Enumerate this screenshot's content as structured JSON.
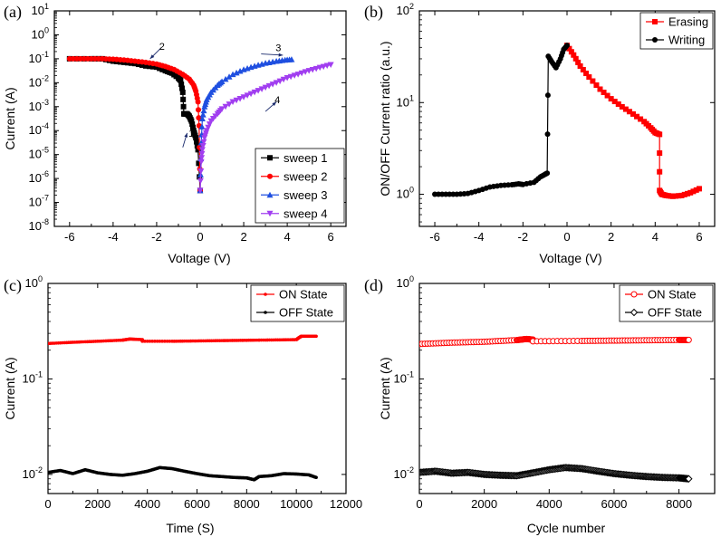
{
  "colors": {
    "black": "#000000",
    "red": "#ff0000",
    "blue": "#1f4fe0",
    "purple": "#a13ef0"
  },
  "chart_data": [
    {
      "id": "a",
      "type": "line",
      "panel_label": "(a)",
      "xlabel": "Voltage (V)",
      "ylabel": "Current (A)",
      "xlim": [
        -6.7,
        6.7
      ],
      "xscale": "linear",
      "yscale": "log",
      "ylim_exp": [
        -8,
        1
      ],
      "x_ticks": [
        -6,
        -4,
        -2,
        0,
        2,
        4,
        6
      ],
      "x_tick_labels": [
        "-6",
        "-4",
        "-2",
        "0",
        "2",
        "4",
        "6"
      ],
      "y_tick_exps": [
        -8,
        -7,
        -6,
        -5,
        -4,
        -3,
        -2,
        -1,
        0,
        1
      ],
      "y_tick_base": "10",
      "y_tick_sups": [
        "-8",
        "-7",
        "-6",
        "-5",
        "-4",
        "-3",
        "-2",
        "-1",
        "0",
        "1"
      ],
      "legend_position": "bottom-right",
      "series": [
        {
          "name": "sweep 1",
          "color_key": "black",
          "marker": "square",
          "x": [
            -6,
            -5,
            -4.5,
            -4,
            -3.5,
            -3,
            -2.5,
            -2,
            -1.6,
            -1.3,
            -1.0,
            -0.9,
            -0.8,
            -0.75,
            -0.7,
            -0.6,
            -0.5,
            -0.4,
            -0.3,
            -0.2,
            -0.1,
            0
          ],
          "y_exp": [
            -1,
            -1,
            -1,
            -1.1,
            -1.15,
            -1.2,
            -1.3,
            -1.35,
            -1.5,
            -1.6,
            -1.8,
            -1.9,
            -2.4,
            -3.3,
            -3.3,
            -3.3,
            -3.4,
            -3.6,
            -4.0,
            -4.3,
            -4.8,
            -6.5
          ]
        },
        {
          "name": "sweep 2",
          "color_key": "red",
          "marker": "circle",
          "x": [
            0,
            -0.05,
            -0.1,
            -0.2,
            -0.3,
            -0.5,
            -0.8,
            -1.2,
            -1.6,
            -2,
            -2.5,
            -3,
            -3.5,
            -4,
            -4.5,
            -5,
            -5.5,
            -6
          ],
          "y_exp": [
            -6.5,
            -3.8,
            -2.8,
            -2.35,
            -2.1,
            -1.85,
            -1.65,
            -1.45,
            -1.32,
            -1.22,
            -1.15,
            -1.1,
            -1.05,
            -1.02,
            -1.0,
            -1.0,
            -1.0,
            -1.0
          ]
        },
        {
          "name": "sweep 3",
          "color_key": "blue",
          "marker": "triangle-up",
          "x": [
            0,
            0.05,
            0.1,
            0.2,
            0.3,
            0.5,
            0.8,
            1.0,
            1.5,
            2,
            2.5,
            3,
            3.5,
            3.9,
            4.2
          ],
          "y_exp": [
            -6.5,
            -4.5,
            -3.5,
            -3.0,
            -2.7,
            -2.4,
            -2.1,
            -1.95,
            -1.65,
            -1.45,
            -1.3,
            -1.18,
            -1.1,
            -1.05,
            -1.03
          ]
        },
        {
          "name": "sweep 4",
          "color_key": "purple",
          "marker": "triangle-down",
          "x": [
            0,
            0.05,
            0.1,
            0.2,
            0.3,
            0.5,
            0.8,
            1.0,
            1.5,
            2,
            2.5,
            3,
            3.5,
            4,
            4.5,
            5,
            5.5,
            6
          ],
          "y_exp": [
            -6.5,
            -5.3,
            -4.8,
            -4.3,
            -4.0,
            -3.6,
            -3.3,
            -3.1,
            -2.8,
            -2.6,
            -2.4,
            -2.2,
            -2.0,
            -1.8,
            -1.65,
            -1.5,
            -1.37,
            -1.25
          ]
        }
      ],
      "annotations": [
        {
          "text": "1",
          "x": -0.8,
          "y_exp": -4.7,
          "x2": -0.6,
          "y2_exp": -4.1
        },
        {
          "text": "2",
          "x": -1.8,
          "y_exp": -0.55,
          "x2": -2.3,
          "y2_exp": -1.0
        },
        {
          "text": "3",
          "x": 2.8,
          "y_exp": -0.8,
          "x2": 3.8,
          "y2_exp": -0.85
        },
        {
          "text": "4",
          "x": 3.0,
          "y_exp": -3.2,
          "x2": 3.5,
          "y2_exp": -2.8
        }
      ]
    },
    {
      "id": "b",
      "type": "line",
      "panel_label": "(b)",
      "xlabel": "Voltage (V)",
      "ylabel": "ON/OFF Current ratio (a.u.)",
      "xlim": [
        -6.7,
        6.7
      ],
      "xscale": "linear",
      "yscale": "log",
      "ylim_exp": [
        -0.35,
        2
      ],
      "x_ticks": [
        -6,
        -4,
        -2,
        0,
        2,
        4,
        6
      ],
      "x_tick_labels": [
        "-6",
        "-4",
        "-2",
        "0",
        "2",
        "4",
        "6"
      ],
      "y_tick_exps": [
        0,
        1,
        2
      ],
      "y_tick_base": "10",
      "y_tick_sups": [
        "0",
        "1",
        "2"
      ],
      "legend_position": "top-right",
      "series": [
        {
          "name": "Erasing",
          "color_key": "red",
          "marker": "square",
          "x": [
            0,
            0.3,
            0.6,
            1.0,
            1.5,
            2.0,
            2.5,
            3.0,
            3.5,
            3.8,
            4.0,
            4.2,
            4.2,
            4.3,
            4.5,
            4.8,
            5.2,
            5.6,
            6.0
          ],
          "y": [
            42,
            33,
            25,
            19,
            14,
            11,
            9,
            7.5,
            6.2,
            5.3,
            4.7,
            4.5,
            1.1,
            1.0,
            0.97,
            0.95,
            0.97,
            1.04,
            1.15
          ]
        },
        {
          "name": "Writing",
          "color_key": "black",
          "marker": "circle",
          "x": [
            -6,
            -5.5,
            -5,
            -4.5,
            -4,
            -3.5,
            -3,
            -2.5,
            -2.2,
            -2,
            -1.5,
            -1.2,
            -1.0,
            -0.9,
            -0.85,
            -0.7,
            -0.5,
            -0.3,
            -0.15,
            0
          ],
          "y": [
            1.0,
            1.0,
            1.0,
            1.02,
            1.1,
            1.2,
            1.25,
            1.27,
            1.3,
            1.28,
            1.35,
            1.55,
            1.65,
            1.7,
            32,
            28,
            24,
            30,
            38,
            42
          ]
        }
      ]
    },
    {
      "id": "c",
      "type": "line",
      "panel_label": "(c)",
      "xlabel": "Time (S)",
      "ylabel": "Current (A)",
      "xlim": [
        0,
        12000
      ],
      "xscale": "linear",
      "yscale": "log",
      "ylim_exp": [
        -2.2,
        0
      ],
      "x_ticks": [
        0,
        2000,
        4000,
        6000,
        8000,
        10000,
        12000
      ],
      "x_tick_labels": [
        "0",
        "2000",
        "4000",
        "6000",
        "8000",
        "10000",
        "12000"
      ],
      "y_tick_exps": [
        -2,
        -1,
        0
      ],
      "y_tick_base": "10",
      "y_tick_sups": [
        "-2",
        "-1",
        "0"
      ],
      "legend_position": "top-right",
      "series": [
        {
          "name": "ON   State",
          "color_key": "red",
          "marker": "dot",
          "x": [
            0,
            1000,
            2000,
            3000,
            3300,
            3800,
            3800,
            5000,
            6000,
            7000,
            8000,
            9000,
            10000,
            10100,
            10200,
            10800
          ],
          "y": [
            0.235,
            0.242,
            0.248,
            0.255,
            0.262,
            0.258,
            0.248,
            0.248,
            0.25,
            0.252,
            0.254,
            0.256,
            0.258,
            0.27,
            0.28,
            0.28
          ]
        },
        {
          "name": "OFF State",
          "color_key": "black",
          "marker": "dot",
          "x": [
            0,
            500,
            1000,
            1500,
            2000,
            2500,
            3000,
            3500,
            4000,
            4500,
            5000,
            5500,
            6000,
            6500,
            7000,
            7500,
            8000,
            8300,
            8500,
            9000,
            9500,
            10000,
            10500,
            10800
          ],
          "y": [
            0.0105,
            0.011,
            0.0102,
            0.0112,
            0.0104,
            0.01,
            0.0098,
            0.0102,
            0.0108,
            0.0118,
            0.0115,
            0.0108,
            0.0102,
            0.0097,
            0.0095,
            0.0093,
            0.0092,
            0.0088,
            0.0095,
            0.0097,
            0.0102,
            0.0101,
            0.0099,
            0.0093
          ]
        }
      ]
    },
    {
      "id": "d",
      "type": "line",
      "panel_label": "(d)",
      "xlabel": "Cycle number",
      "ylabel": "Current (A)",
      "xlim": [
        0,
        9100
      ],
      "xscale": "linear",
      "yscale": "log",
      "ylim_exp": [
        -2.2,
        0
      ],
      "x_ticks": [
        0,
        2000,
        4000,
        6000,
        8000
      ],
      "x_tick_labels": [
        "0",
        "2000",
        "4000",
        "6000",
        "8000"
      ],
      "y_tick_exps": [
        -2,
        -1,
        0
      ],
      "y_tick_base": "10",
      "y_tick_sups": [
        "-2",
        "-1",
        "0"
      ],
      "legend_position": "top-right",
      "series": [
        {
          "name": "ON  State",
          "color_key": "red",
          "marker": "open-circle",
          "x": [
            0,
            1000,
            2000,
            3000,
            3300,
            3500,
            3500,
            5000,
            6000,
            7000,
            8000,
            8300
          ],
          "y": [
            0.232,
            0.24,
            0.245,
            0.255,
            0.262,
            0.258,
            0.248,
            0.25,
            0.252,
            0.254,
            0.256,
            0.256
          ]
        },
        {
          "name": "OFF State",
          "color_key": "black",
          "marker": "open-diamond",
          "x": [
            0,
            500,
            1000,
            1500,
            2000,
            2500,
            3000,
            3500,
            4000,
            4500,
            5000,
            5500,
            6000,
            6500,
            7000,
            7500,
            8000,
            8300
          ],
          "y": [
            0.0105,
            0.0108,
            0.0103,
            0.0105,
            0.01,
            0.0098,
            0.0097,
            0.0104,
            0.0112,
            0.0118,
            0.0115,
            0.0108,
            0.0102,
            0.0098,
            0.0095,
            0.0093,
            0.0092,
            0.009
          ]
        }
      ]
    }
  ]
}
